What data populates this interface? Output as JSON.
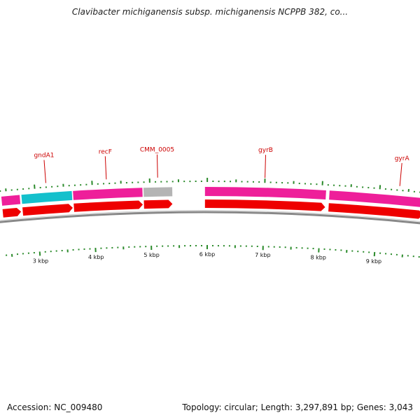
{
  "title": "Clavibacter michiganensis subsp. michiganensis NCPPB 382, co...",
  "footer": {
    "accession_label": "Accession:",
    "accession": "NC_009480",
    "summary": "Topology: circular; Length: 3,297,891 bp; Genes: 3,043"
  },
  "genome_map": {
    "visible_range_kbp": [
      2.4,
      9.7
    ],
    "colors": {
      "cds_default": "#ee1f9a",
      "cds_cyan": "#14c0cc",
      "cds_gray": "#b4b4b4",
      "gene_arrow": "#ee0000",
      "ticks": "#2a8a2a",
      "backbone": "#888888",
      "labels": "#cc0000"
    },
    "tick_labels": [
      {
        "kbp": 3,
        "label": "3 kbp"
      },
      {
        "kbp": 4,
        "label": "4 kbp"
      },
      {
        "kbp": 5,
        "label": "5 kbp"
      },
      {
        "kbp": 6,
        "label": "6 kbp"
      },
      {
        "kbp": 7,
        "label": "7 kbp"
      },
      {
        "kbp": 8,
        "label": "8 kbp"
      },
      {
        "kbp": 9,
        "label": "9 kbp"
      }
    ],
    "genes": [
      {
        "name": "gndA1",
        "color": "cyan",
        "start_kbp": 2.75,
        "end_kbp": 3.65
      },
      {
        "name": "recF",
        "color": "default",
        "start_kbp": 3.65,
        "end_kbp": 4.88
      },
      {
        "name": "CMM_0005",
        "color": "gray",
        "start_kbp": 4.88,
        "end_kbp": 5.4
      },
      {
        "name": "gyrB",
        "color": "default",
        "start_kbp": 5.95,
        "end_kbp": 8.08
      },
      {
        "name": "gyrA",
        "color": "default",
        "start_kbp": 8.12,
        "end_kbp": 9.8
      }
    ],
    "left_partial": {
      "color": "default",
      "start_kbp": 2.4,
      "end_kbp": 2.74
    },
    "label_anchor_kbp": {
      "gndA1": 3.2,
      "recF": 4.25,
      "CMM_0005": 5.14,
      "gyrB": 7.0,
      "gyrA": 9.34
    }
  }
}
